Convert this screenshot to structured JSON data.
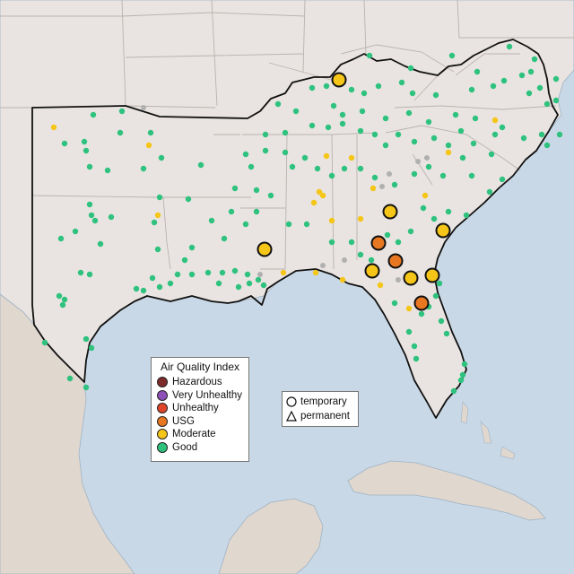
{
  "colors": {
    "water": "#c9d8e6",
    "land": "#e9e4e1",
    "mexico_land": "#e0d7cf",
    "state_border": "#b9b3b0",
    "region_border": "#111111",
    "hazardous": "#7e2a2a",
    "very_unhealthy": "#8e4fb8",
    "unhealthy": "#e0452a",
    "usg": "#e87722",
    "moderate": "#f5c518",
    "good": "#2ec27e",
    "no_data": "#b0b0b0"
  },
  "legend": {
    "title": "Air Quality Index",
    "categories": [
      {
        "label": "Hazardous",
        "color_key": "hazardous"
      },
      {
        "label": "Very Unhealthy",
        "color_key": "very_unhealthy"
      },
      {
        "label": "Unhealthy",
        "color_key": "unhealthy"
      },
      {
        "label": "USG",
        "color_key": "usg"
      },
      {
        "label": "Moderate",
        "color_key": "moderate"
      },
      {
        "label": "Good",
        "color_key": "good"
      }
    ]
  },
  "monitor_type_legend": {
    "items": [
      {
        "label": "temporary",
        "shape": "circle"
      },
      {
        "label": "permanent",
        "shape": "triangle"
      }
    ]
  },
  "temporary_monitors": [
    {
      "category": "moderate",
      "location": "eastern Kentucky"
    },
    {
      "category": "moderate",
      "location": "central Georgia"
    },
    {
      "category": "moderate",
      "location": "coastal South Carolina"
    },
    {
      "category": "moderate",
      "location": "southern Louisiana"
    },
    {
      "category": "usg",
      "location": "southwest Georgia"
    },
    {
      "category": "usg",
      "location": "south Georgia"
    },
    {
      "category": "moderate",
      "location": "north Florida panhandle"
    },
    {
      "category": "moderate",
      "location": "north Florida"
    },
    {
      "category": "moderate",
      "location": "northeast Florida"
    },
    {
      "category": "usg",
      "location": "central Florida"
    }
  ]
}
